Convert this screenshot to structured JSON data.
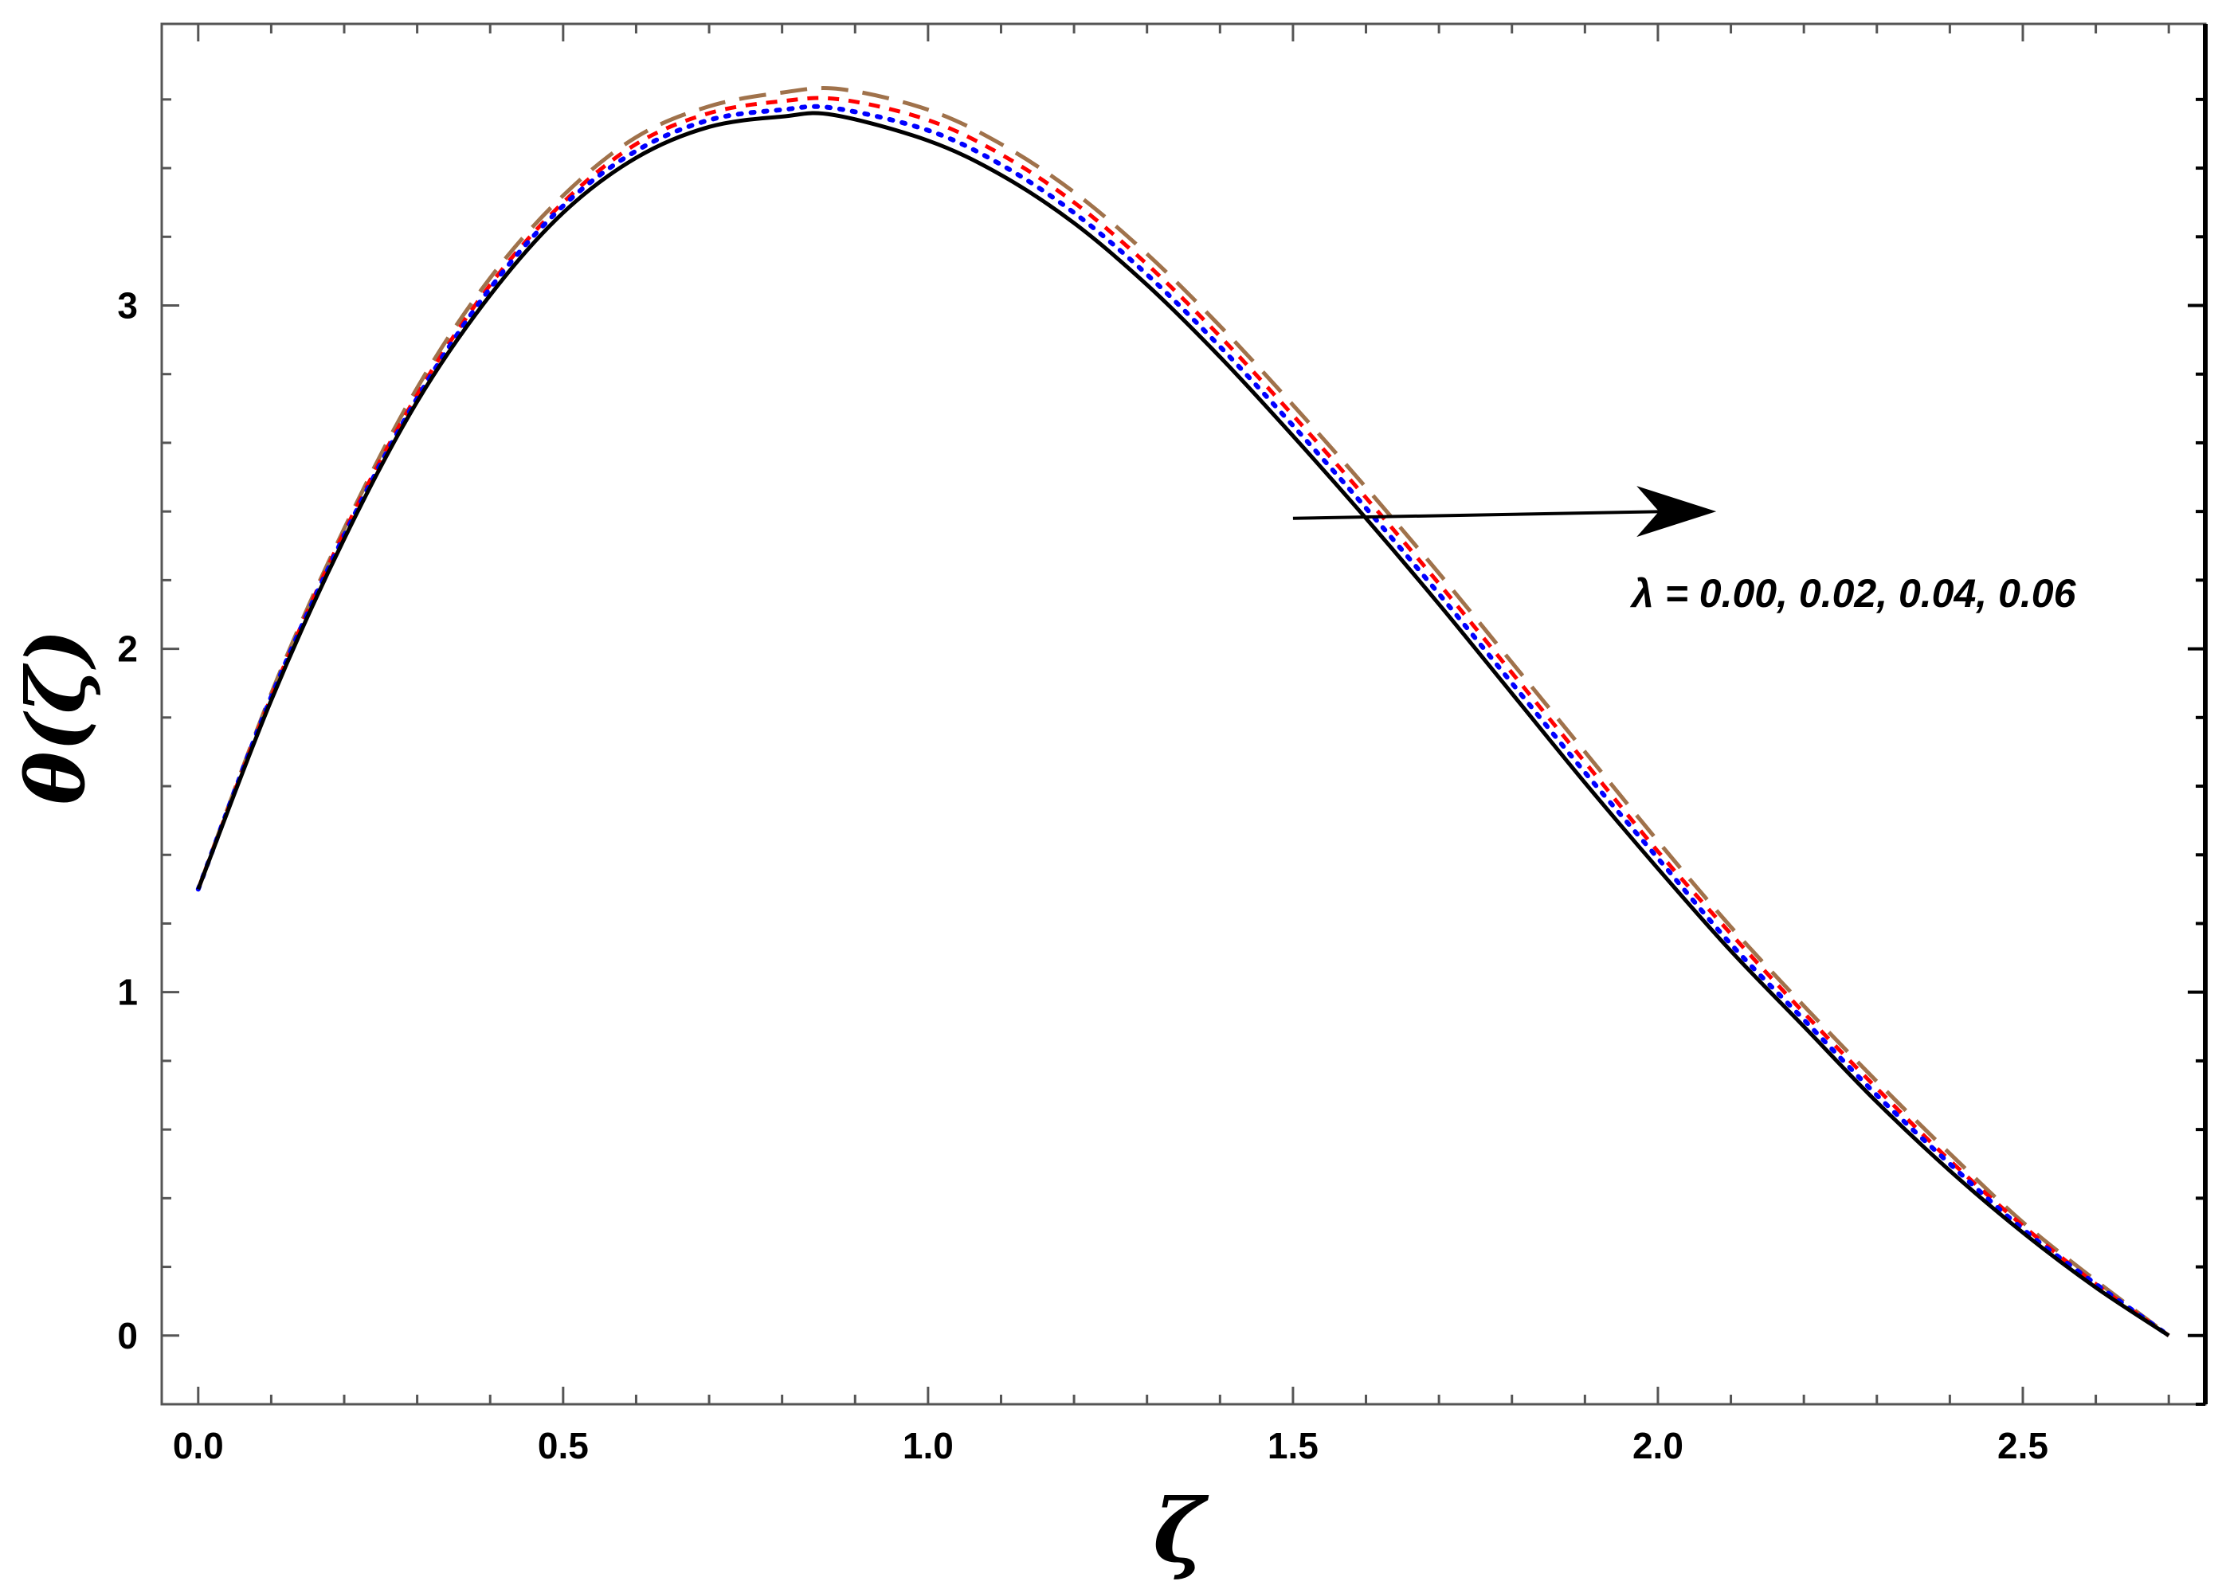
{
  "chart_data": {
    "type": "line",
    "title": "",
    "xlabel": "ζ",
    "ylabel": "θ(ζ)",
    "xlim": [
      -0.05,
      2.75
    ],
    "ylim": [
      -0.2,
      3.82
    ],
    "x_ticks": [
      "0.0",
      "0.5",
      "1.0",
      "1.5",
      "2.0",
      "2.5"
    ],
    "y_ticks": [
      "0",
      "1",
      "2",
      "3"
    ],
    "grid": false,
    "legend": "none",
    "annotation": "λ = 0.00, 0.02, 0.04, 0.06",
    "arrow": {
      "from": [
        1.5,
        2.38
      ],
      "to": [
        2.08,
        2.4
      ]
    },
    "series": [
      {
        "style": "solid",
        "color": "#000000",
        "x": [
          0.0,
          0.1,
          0.2,
          0.3,
          0.4,
          0.5,
          0.6,
          0.7,
          0.8,
          0.87,
          1.0,
          1.1,
          1.2,
          1.3,
          1.4,
          1.5,
          1.6,
          1.7,
          1.8,
          1.9,
          2.0,
          2.1,
          2.2,
          2.3,
          2.4,
          2.5,
          2.6,
          2.7
        ],
        "y": [
          1.3,
          1.85,
          2.32,
          2.72,
          3.03,
          3.27,
          3.43,
          3.52,
          3.55,
          3.555,
          3.48,
          3.38,
          3.24,
          3.06,
          2.85,
          2.62,
          2.38,
          2.13,
          1.87,
          1.61,
          1.36,
          1.12,
          0.9,
          0.68,
          0.48,
          0.3,
          0.14,
          0.0
        ]
      },
      {
        "style": "dotted",
        "color": "#0000ff",
        "x": [
          0.0,
          0.1,
          0.2,
          0.3,
          0.4,
          0.5,
          0.6,
          0.7,
          0.8,
          0.87,
          1.0,
          1.1,
          1.2,
          1.3,
          1.4,
          1.5,
          1.6,
          1.7,
          1.8,
          1.9,
          2.0,
          2.1,
          2.2,
          2.3,
          2.4,
          2.5,
          2.6,
          2.7
        ],
        "y": [
          1.3,
          1.86,
          2.33,
          2.73,
          3.05,
          3.29,
          3.45,
          3.54,
          3.57,
          3.575,
          3.51,
          3.41,
          3.27,
          3.09,
          2.88,
          2.65,
          2.41,
          2.16,
          1.9,
          1.64,
          1.39,
          1.14,
          0.92,
          0.7,
          0.5,
          0.31,
          0.15,
          0.0
        ]
      },
      {
        "style": "dashed",
        "color": "#ff0000",
        "x": [
          0.0,
          0.1,
          0.2,
          0.3,
          0.4,
          0.5,
          0.6,
          0.7,
          0.8,
          0.88,
          1.0,
          1.1,
          1.2,
          1.3,
          1.4,
          1.5,
          1.6,
          1.7,
          1.8,
          1.9,
          2.0,
          2.1,
          2.2,
          2.3,
          2.4,
          2.5,
          2.6,
          2.7
        ],
        "y": [
          1.3,
          1.86,
          2.34,
          2.74,
          3.06,
          3.3,
          3.47,
          3.56,
          3.595,
          3.6,
          3.54,
          3.44,
          3.3,
          3.12,
          2.91,
          2.68,
          2.44,
          2.19,
          1.93,
          1.67,
          1.41,
          1.17,
          0.94,
          0.72,
          0.51,
          0.32,
          0.15,
          0.0
        ]
      },
      {
        "style": "longdash",
        "color": "#a0724b",
        "x": [
          0.0,
          0.1,
          0.2,
          0.3,
          0.4,
          0.5,
          0.6,
          0.7,
          0.8,
          0.88,
          1.0,
          1.1,
          1.2,
          1.3,
          1.4,
          1.5,
          1.6,
          1.7,
          1.8,
          1.9,
          2.0,
          2.1,
          2.2,
          2.3,
          2.4,
          2.5,
          2.6,
          2.7
        ],
        "y": [
          1.3,
          1.87,
          2.35,
          2.76,
          3.08,
          3.32,
          3.49,
          3.58,
          3.62,
          3.63,
          3.57,
          3.47,
          3.33,
          3.15,
          2.94,
          2.71,
          2.47,
          2.22,
          1.96,
          1.7,
          1.44,
          1.19,
          0.96,
          0.74,
          0.53,
          0.33,
          0.16,
          0.0
        ]
      }
    ]
  }
}
